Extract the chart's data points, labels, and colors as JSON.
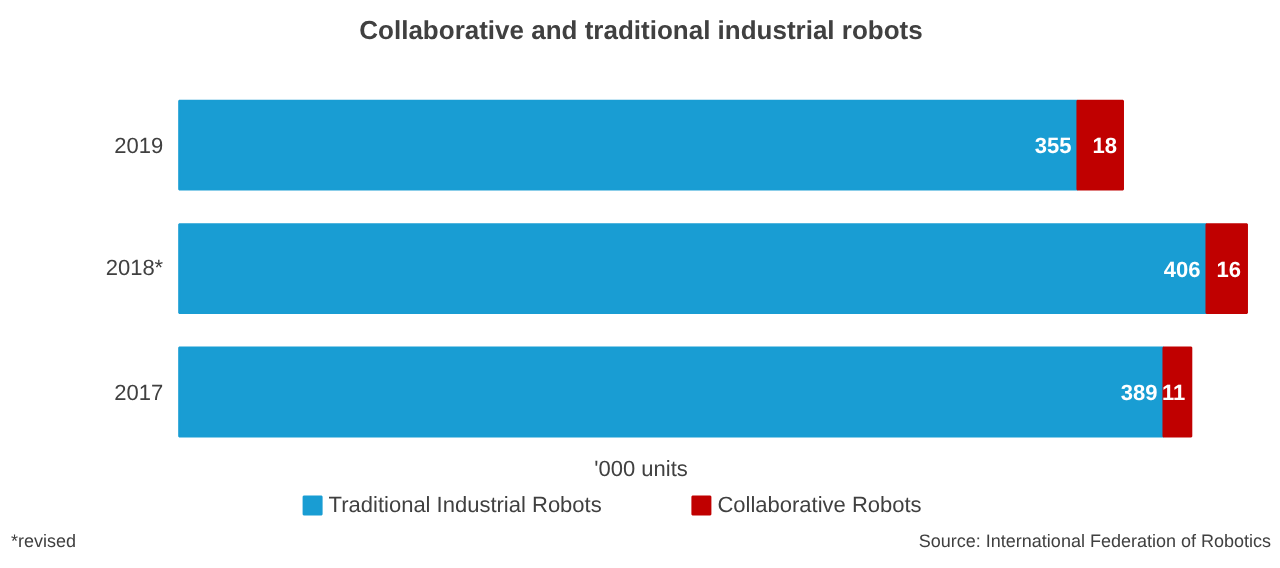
{
  "chart_data": {
    "type": "bar",
    "orientation": "horizontal",
    "stacked": true,
    "title": "Collaborative and traditional industrial robots",
    "xlabel": "'000 units",
    "categories": [
      "2019",
      "2018*",
      "2017"
    ],
    "series": [
      {
        "name": "Traditional Industrial Robots",
        "color": "#199dd3",
        "values": [
          355,
          406,
          389
        ]
      },
      {
        "name": "Collaborative Robots",
        "color": "#c00000",
        "values": [
          18,
          16,
          11
        ]
      }
    ],
    "data_labels": true,
    "legend": "bottom",
    "annotations": [
      "*revised",
      "Source: International Federation of Robotics"
    ]
  }
}
